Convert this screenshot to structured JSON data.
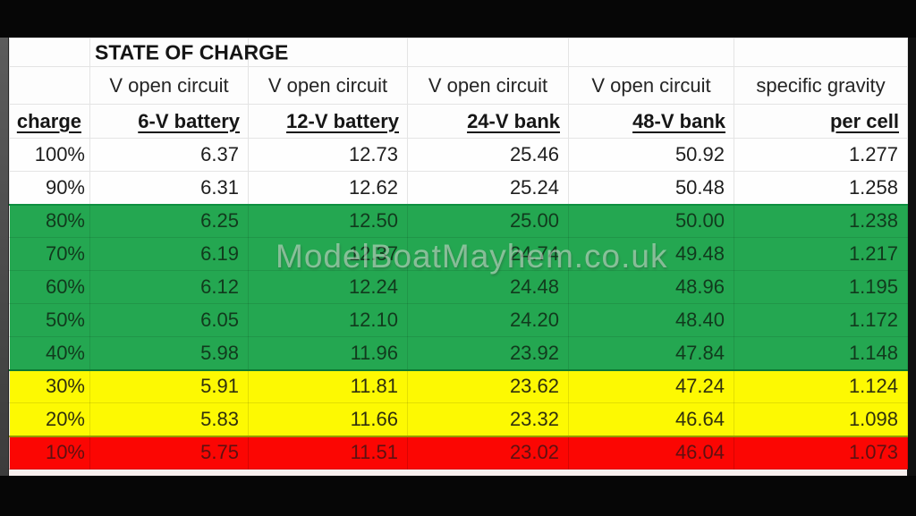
{
  "watermark": "ModelBoatMayhem.co.uk",
  "table": {
    "title": "STATE OF CHARGE",
    "subheaders": [
      "",
      "V open circuit",
      "V open circuit",
      "V open circuit",
      "V open circuit",
      "specific gravity"
    ],
    "column_names": [
      "charge",
      "6-V battery",
      "12-V battery",
      "24-V bank",
      "48-V bank",
      "per cell"
    ],
    "colors": {
      "band_white": "#fefefe",
      "band_green": "#24a751",
      "band_yellow": "#fdf902",
      "band_red": "#fb0603"
    },
    "band_top_borders": {
      "2": "#0e8f40",
      "7": "#0d7a33",
      "9": "#969a00"
    }
  },
  "chart_data": {
    "type": "table",
    "title": "STATE OF CHARGE",
    "columns": [
      "charge",
      "6-V battery (V open circuit)",
      "12-V battery (V open circuit)",
      "24-V bank (V open circuit)",
      "48-V bank (V open circuit)",
      "specific gravity per cell"
    ],
    "rows": [
      [
        "100%",
        "6.37",
        "12.73",
        "25.46",
        "50.92",
        "1.277"
      ],
      [
        "90%",
        "6.31",
        "12.62",
        "25.24",
        "50.48",
        "1.258"
      ],
      [
        "80%",
        "6.25",
        "12.50",
        "25.00",
        "50.00",
        "1.238"
      ],
      [
        "70%",
        "6.19",
        "12.37",
        "24.74",
        "49.48",
        "1.217"
      ],
      [
        "60%",
        "6.12",
        "12.24",
        "24.48",
        "48.96",
        "1.195"
      ],
      [
        "50%",
        "6.05",
        "12.10",
        "24.20",
        "48.40",
        "1.172"
      ],
      [
        "40%",
        "5.98",
        "11.96",
        "23.92",
        "47.84",
        "1.148"
      ],
      [
        "30%",
        "5.91",
        "11.81",
        "23.62",
        "47.24",
        "1.124"
      ],
      [
        "20%",
        "5.83",
        "11.66",
        "23.32",
        "46.64",
        "1.098"
      ],
      [
        "10%",
        "5.75",
        "11.51",
        "23.02",
        "46.04",
        "1.073"
      ]
    ],
    "row_bands": [
      "white",
      "white",
      "green",
      "green",
      "green",
      "green",
      "green",
      "yellow",
      "yellow",
      "red"
    ]
  }
}
